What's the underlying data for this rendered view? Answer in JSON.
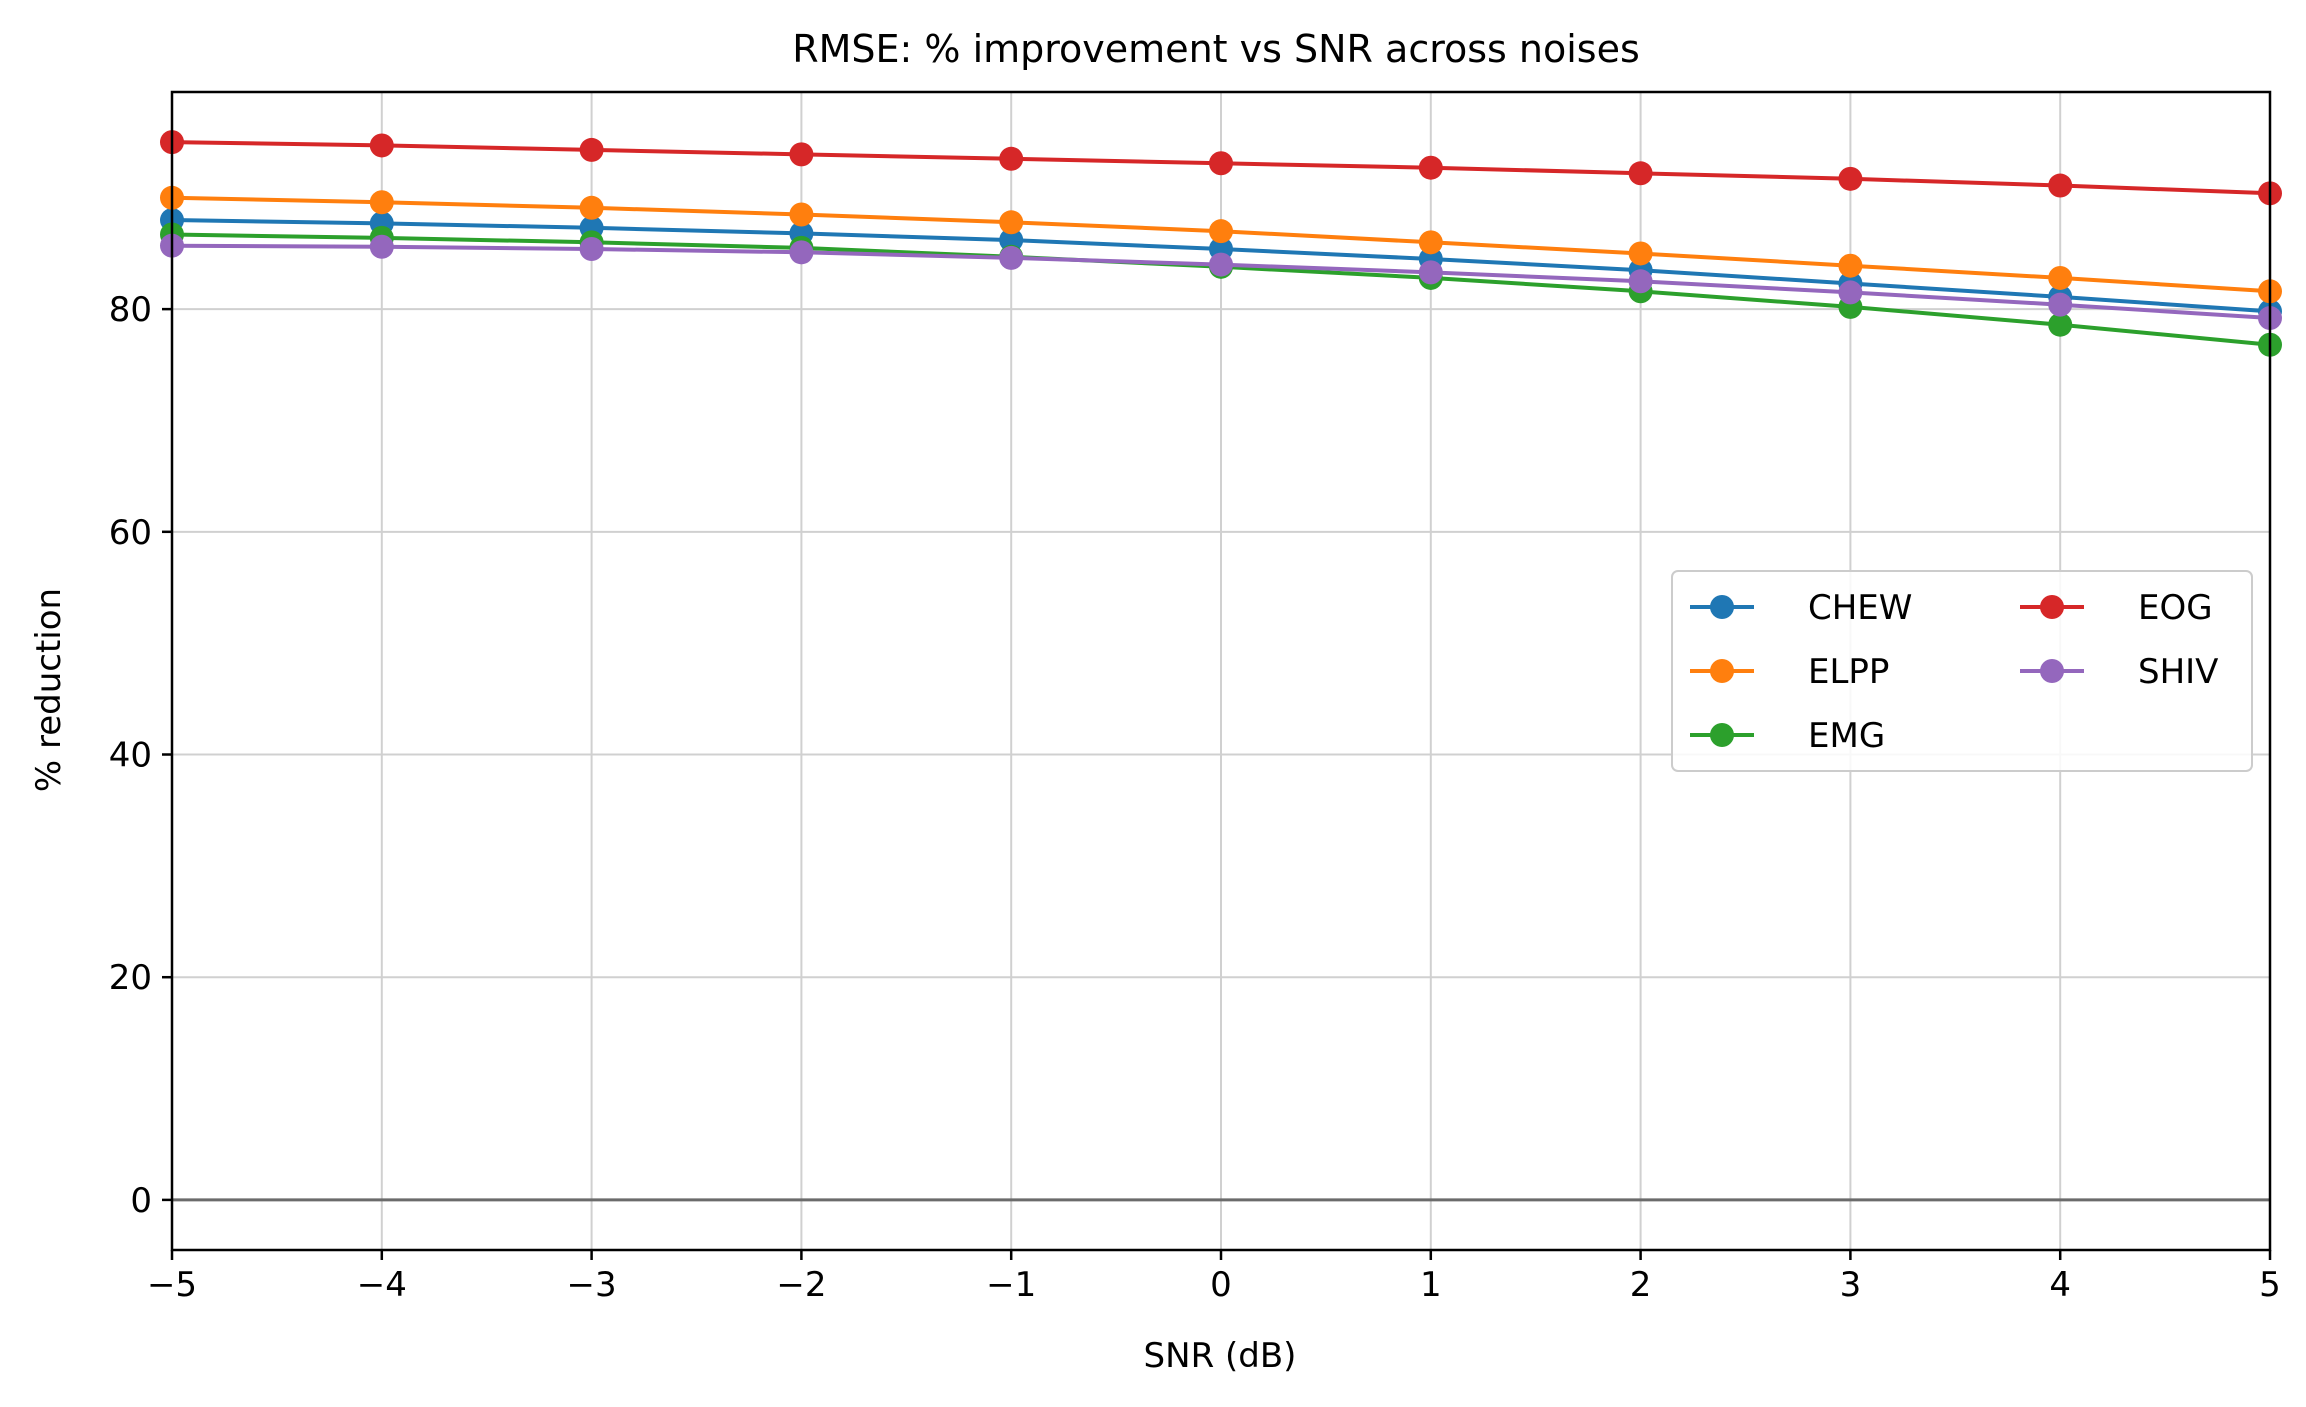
{
  "chart_data": {
    "type": "line",
    "title": "RMSE: % improvement vs SNR across noises",
    "xlabel": "SNR (dB)",
    "ylabel": "% reduction",
    "xlim": [
      -5,
      5
    ],
    "ylim": [
      -4.5,
      99.5
    ],
    "xticks": [
      -5,
      -4,
      -3,
      -2,
      -1,
      0,
      1,
      2,
      3,
      4,
      5
    ],
    "xtick_labels": [
      "−5",
      "−4",
      "−3",
      "−2",
      "−1",
      "0",
      "1",
      "2",
      "3",
      "4",
      "5"
    ],
    "yticks": [
      0,
      20,
      40,
      60,
      80
    ],
    "ytick_labels": [
      "0",
      "20",
      "40",
      "60",
      "80"
    ],
    "grid": true,
    "reference_line_y": 0,
    "legend_position": "center-right",
    "legend_columns": 2,
    "x": [
      -5,
      -4,
      -3,
      -2,
      -1,
      0,
      1,
      2,
      3,
      4,
      5
    ],
    "series": [
      {
        "name": "CHEW",
        "color": "#1f77b4",
        "values": [
          88.0,
          87.7,
          87.3,
          86.8,
          86.2,
          85.4,
          84.5,
          83.5,
          82.3,
          81.1,
          79.8
        ]
      },
      {
        "name": "ELPP",
        "color": "#ff7f0e",
        "values": [
          90.0,
          89.6,
          89.1,
          88.5,
          87.8,
          87.0,
          86.0,
          85.0,
          83.9,
          82.8,
          81.6
        ]
      },
      {
        "name": "EMG",
        "color": "#2ca02c",
        "values": [
          86.7,
          86.4,
          86.0,
          85.5,
          84.7,
          83.8,
          82.8,
          81.6,
          80.2,
          78.6,
          76.8
        ]
      },
      {
        "name": "EOG",
        "color": "#d62728",
        "values": [
          95.0,
          94.7,
          94.3,
          93.9,
          93.5,
          93.1,
          92.7,
          92.2,
          91.7,
          91.1,
          90.4
        ]
      },
      {
        "name": "SHIV",
        "color": "#9467bd",
        "values": [
          85.7,
          85.6,
          85.4,
          85.1,
          84.6,
          84.0,
          83.3,
          82.5,
          81.5,
          80.4,
          79.2
        ]
      }
    ]
  }
}
